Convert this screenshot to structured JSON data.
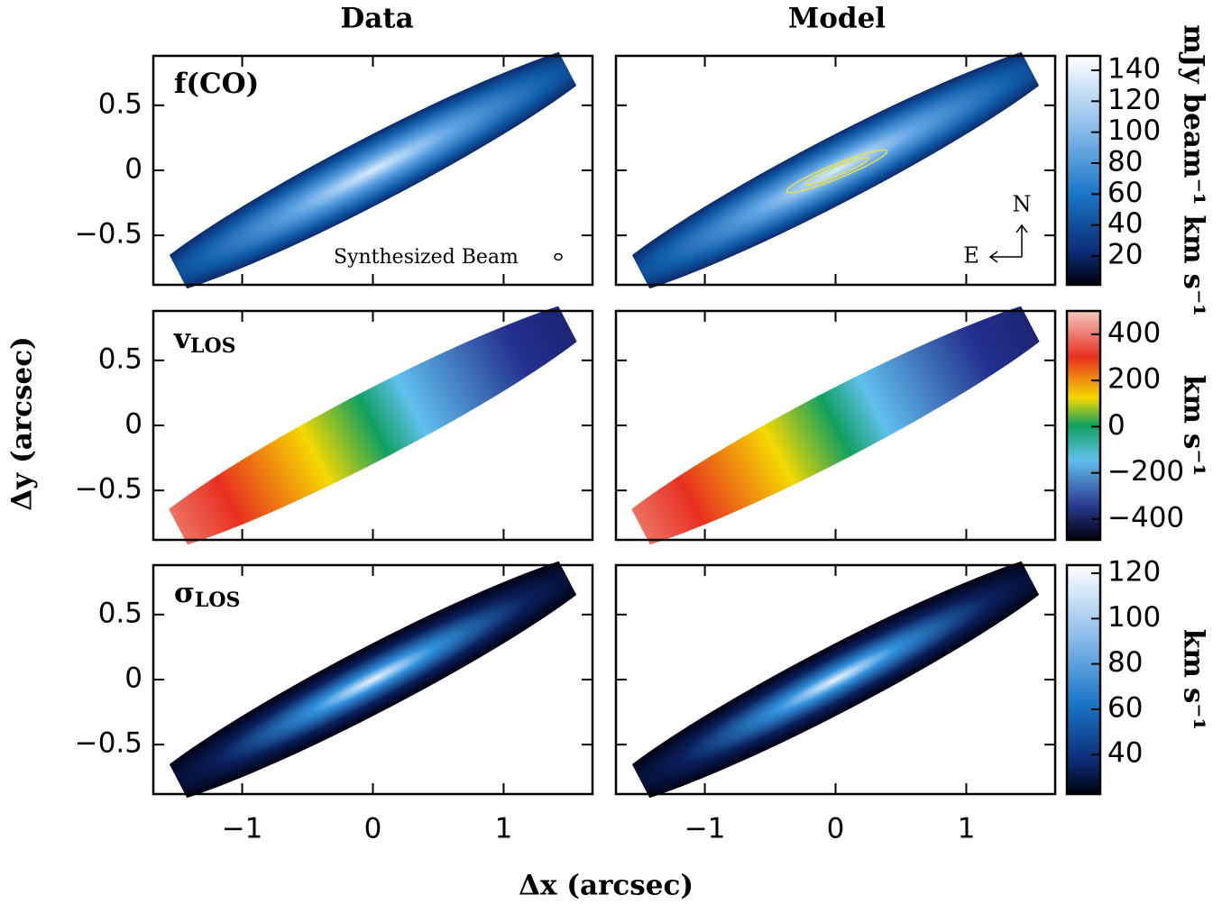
{
  "columns": [
    "Data",
    "Model"
  ],
  "x_axis": {
    "label": "Δx (arcsec)",
    "xlim": [
      -1.68,
      1.68
    ],
    "xticks": [
      {
        "value": -1,
        "label": "−1"
      },
      0,
      1
    ]
  },
  "y_axis": {
    "label": "Δy (arcsec)",
    "ylim": [
      -0.88,
      0.88
    ],
    "yticks": [
      {
        "value": -0.5,
        "label": "−0.5"
      },
      0,
      0.5
    ]
  },
  "rows": [
    {
      "label": {
        "symbol": "f(CO)"
      },
      "map": "fco",
      "colorbar": {
        "label": "mJy beam⁻¹ km s⁻¹",
        "clim": [
          1.4,
          149.3
        ],
        "ticks": [
          20,
          40,
          60,
          80,
          100,
          120,
          140
        ]
      }
    },
    {
      "label": {
        "symbol": "v",
        "subscript": "LOS"
      },
      "map": "vlos",
      "colorbar": {
        "label": "km s⁻¹",
        "clim": [
          -490,
          501
        ],
        "ticks": [
          {
            "value": -400,
            "label": "−400"
          },
          {
            "value": -200,
            "label": "−200"
          },
          0,
          200,
          400
        ]
      }
    },
    {
      "label": {
        "symbol": "σ",
        "subscript": "LOS"
      },
      "map": "sigma",
      "colorbar": {
        "label": "km s⁻¹",
        "clim": [
          22.6,
          123.6
        ],
        "ticks": [
          40,
          60,
          80,
          100,
          120
        ]
      }
    }
  ],
  "annotations": {
    "beam": "Synthesized Beam",
    "north": "N",
    "east": "E"
  }
}
